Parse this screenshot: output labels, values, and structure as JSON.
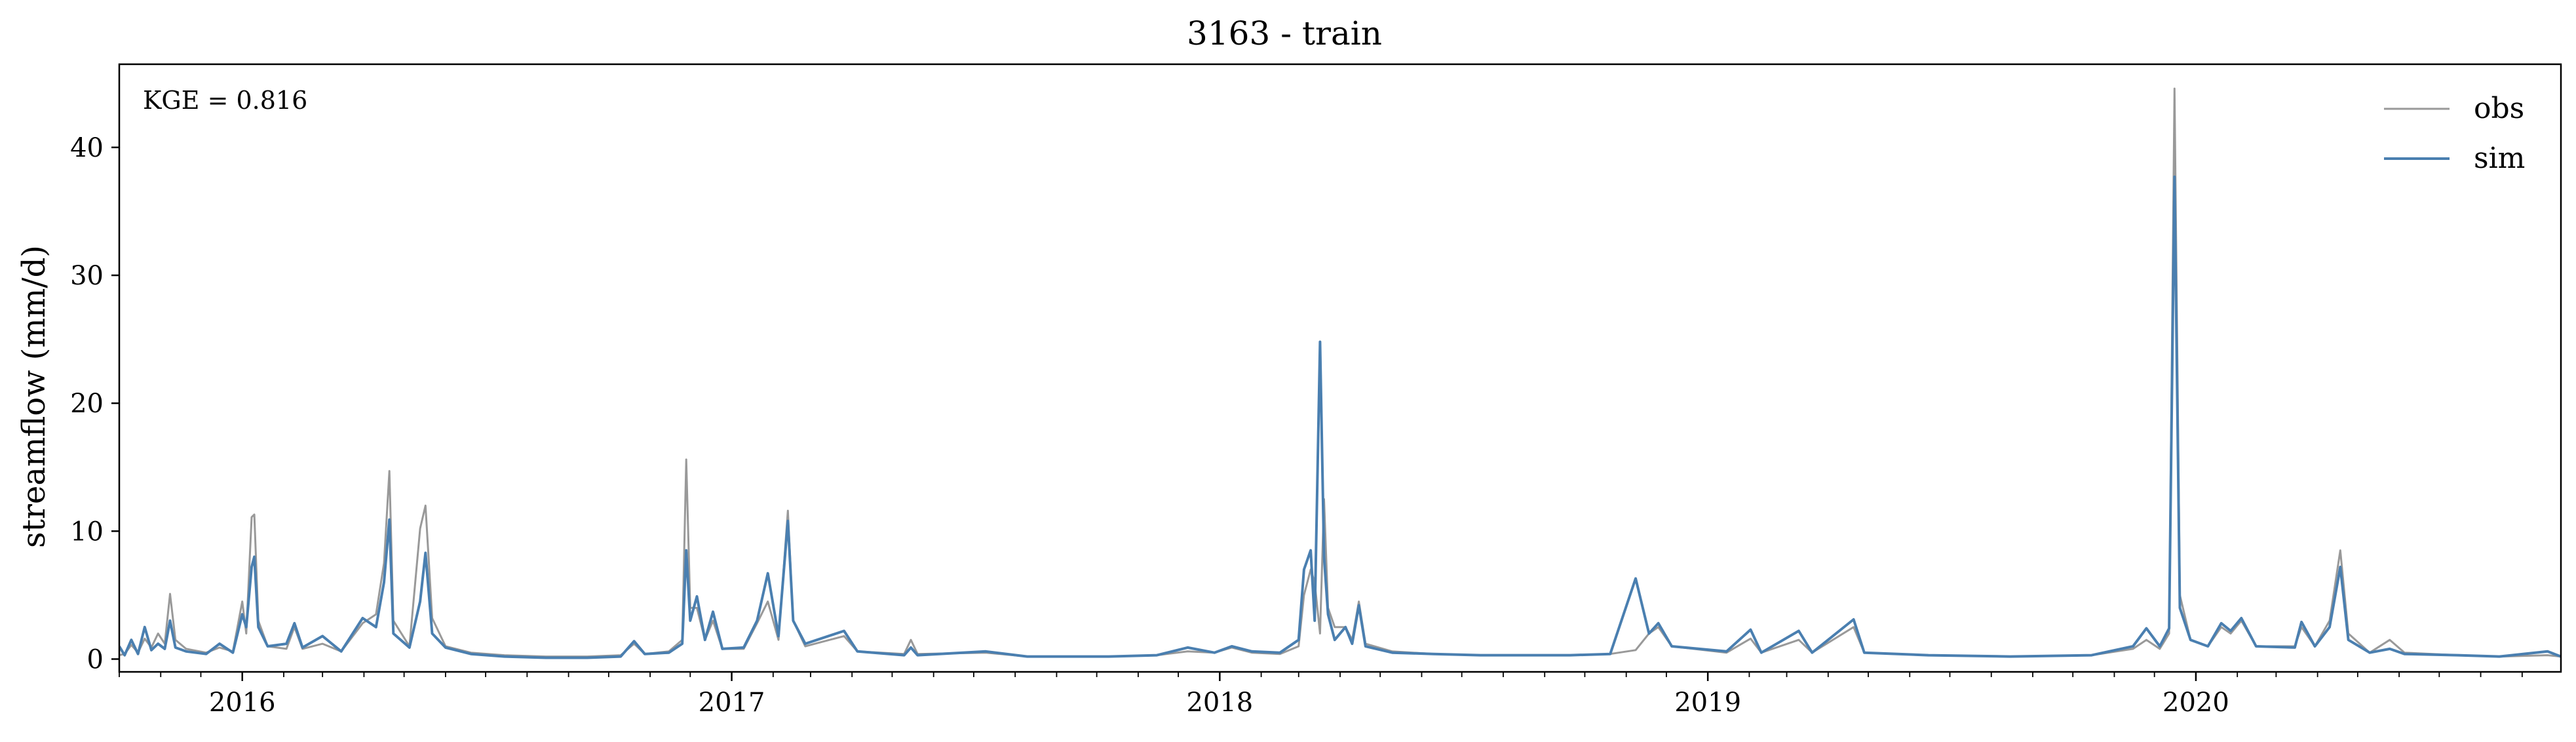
{
  "chart_data": {
    "type": "line",
    "title": "3163 - train",
    "xlabel": "",
    "ylabel": "streamflow (mm/d)",
    "annotation": "KGE = 0.816",
    "x_ticks": [
      "2016",
      "2017",
      "2018",
      "2019",
      "2020"
    ],
    "y_ticks": [
      "0",
      "10",
      "20",
      "30",
      "40"
    ],
    "xlim": [
      "2015-10-01",
      "2020-09-30"
    ],
    "ylim": [
      -1,
      46.5
    ],
    "grid": false,
    "legend": "top-right",
    "series": [
      {
        "name": "obs",
        "color": "#999999",
        "points": [
          [
            "2015-10-01",
            0.3
          ],
          [
            "2015-10-05",
            0.4
          ],
          [
            "2015-10-10",
            1.1
          ],
          [
            "2015-10-15",
            0.5
          ],
          [
            "2015-10-20",
            1.6
          ],
          [
            "2015-10-25",
            0.9
          ],
          [
            "2015-10-30",
            2.0
          ],
          [
            "2015-11-04",
            1.2
          ],
          [
            "2015-11-08",
            5.1
          ],
          [
            "2015-11-12",
            1.5
          ],
          [
            "2015-11-20",
            0.8
          ],
          [
            "2015-12-05",
            0.5
          ],
          [
            "2015-12-15",
            0.9
          ],
          [
            "2015-12-25",
            0.6
          ],
          [
            "2016-01-01",
            4.5
          ],
          [
            "2016-01-04",
            2.0
          ],
          [
            "2016-01-08",
            11.1
          ],
          [
            "2016-01-10",
            11.3
          ],
          [
            "2016-01-13",
            3.0
          ],
          [
            "2016-01-20",
            1.0
          ],
          [
            "2016-02-03",
            0.8
          ],
          [
            "2016-02-09",
            2.5
          ],
          [
            "2016-02-15",
            0.8
          ],
          [
            "2016-03-01",
            1.2
          ],
          [
            "2016-03-15",
            0.6
          ],
          [
            "2016-03-31",
            2.8
          ],
          [
            "2016-04-10",
            3.5
          ],
          [
            "2016-04-16",
            7.5
          ],
          [
            "2016-04-20",
            14.7
          ],
          [
            "2016-04-23",
            3.0
          ],
          [
            "2016-05-05",
            1.0
          ],
          [
            "2016-05-13",
            10.2
          ],
          [
            "2016-05-17",
            12.0
          ],
          [
            "2016-05-22",
            3.2
          ],
          [
            "2016-06-01",
            1.0
          ],
          [
            "2016-06-20",
            0.5
          ],
          [
            "2016-07-15",
            0.3
          ],
          [
            "2016-08-15",
            0.2
          ],
          [
            "2016-09-15",
            0.2
          ],
          [
            "2016-10-10",
            0.3
          ],
          [
            "2016-10-20",
            1.2
          ],
          [
            "2016-10-28",
            0.4
          ],
          [
            "2016-11-15",
            0.6
          ],
          [
            "2016-11-25",
            1.5
          ],
          [
            "2016-11-28",
            15.6
          ],
          [
            "2016-12-01",
            4.0
          ],
          [
            "2016-12-06",
            4.0
          ],
          [
            "2016-12-12",
            1.5
          ],
          [
            "2016-12-18",
            3.0
          ],
          [
            "2016-12-25",
            0.8
          ],
          [
            "2017-01-10",
            0.8
          ],
          [
            "2017-01-20",
            2.8
          ],
          [
            "2017-01-28",
            4.5
          ],
          [
            "2017-02-05",
            1.5
          ],
          [
            "2017-02-12",
            11.6
          ],
          [
            "2017-02-16",
            3.0
          ],
          [
            "2017-02-25",
            1.0
          ],
          [
            "2017-03-26",
            1.8
          ],
          [
            "2017-04-05",
            0.6
          ],
          [
            "2017-05-10",
            0.4
          ],
          [
            "2017-05-15",
            1.5
          ],
          [
            "2017-05-20",
            0.4
          ],
          [
            "2017-07-10",
            0.5
          ],
          [
            "2017-08-10",
            0.2
          ],
          [
            "2017-09-15",
            0.2
          ],
          [
            "2017-10-10",
            0.2
          ],
          [
            "2017-11-15",
            0.3
          ],
          [
            "2017-12-08",
            0.6
          ],
          [
            "2017-12-28",
            0.5
          ],
          [
            "2018-01-10",
            0.9
          ],
          [
            "2018-01-25",
            0.5
          ],
          [
            "2018-02-15",
            0.4
          ],
          [
            "2018-03-01",
            1.0
          ],
          [
            "2018-03-05",
            5.0
          ],
          [
            "2018-03-10",
            7.0
          ],
          [
            "2018-03-13",
            6.0
          ],
          [
            "2018-03-17",
            2.0
          ],
          [
            "2018-03-20",
            12.5
          ],
          [
            "2018-03-23",
            4.0
          ],
          [
            "2018-03-28",
            2.5
          ],
          [
            "2018-04-05",
            2.5
          ],
          [
            "2018-04-10",
            1.5
          ],
          [
            "2018-04-15",
            4.5
          ],
          [
            "2018-04-20",
            1.2
          ],
          [
            "2018-05-10",
            0.6
          ],
          [
            "2018-06-10",
            0.4
          ],
          [
            "2018-07-15",
            0.3
          ],
          [
            "2018-08-20",
            0.3
          ],
          [
            "2018-09-20",
            0.3
          ],
          [
            "2018-10-20",
            0.4
          ],
          [
            "2018-11-08",
            0.7
          ],
          [
            "2018-11-18",
            2.0
          ],
          [
            "2018-11-25",
            2.5
          ],
          [
            "2018-12-05",
            1.0
          ],
          [
            "2019-01-15",
            0.5
          ],
          [
            "2019-02-02",
            1.6
          ],
          [
            "2019-02-10",
            0.5
          ],
          [
            "2019-03-10",
            1.5
          ],
          [
            "2019-03-20",
            0.5
          ],
          [
            "2019-04-20",
            2.5
          ],
          [
            "2019-04-28",
            0.5
          ],
          [
            "2019-06-15",
            0.3
          ],
          [
            "2019-08-15",
            0.2
          ],
          [
            "2019-10-15",
            0.3
          ],
          [
            "2019-11-15",
            0.8
          ],
          [
            "2019-11-25",
            1.5
          ],
          [
            "2019-12-05",
            0.8
          ],
          [
            "2019-12-12",
            2.0
          ],
          [
            "2019-12-16",
            44.6
          ],
          [
            "2019-12-20",
            5.0
          ],
          [
            "2019-12-28",
            1.5
          ],
          [
            "2020-01-10",
            1.0
          ],
          [
            "2020-01-20",
            2.5
          ],
          [
            "2020-01-27",
            2.0
          ],
          [
            "2020-02-04",
            3.0
          ],
          [
            "2020-02-15",
            1.0
          ],
          [
            "2020-03-15",
            1.0
          ],
          [
            "2020-03-20",
            2.5
          ],
          [
            "2020-03-30",
            1.0
          ],
          [
            "2020-04-10",
            3.0
          ],
          [
            "2020-04-18",
            8.5
          ],
          [
            "2020-04-24",
            2.0
          ],
          [
            "2020-05-10",
            0.5
          ],
          [
            "2020-05-25",
            1.5
          ],
          [
            "2020-06-05",
            0.5
          ],
          [
            "2020-07-15",
            0.3
          ],
          [
            "2020-08-15",
            0.2
          ],
          [
            "2020-09-20",
            0.3
          ],
          [
            "2020-09-30",
            0.2
          ]
        ]
      },
      {
        "name": "sim",
        "color": "#4a7fb0",
        "points": [
          [
            "2015-10-01",
            1.0
          ],
          [
            "2015-10-05",
            0.3
          ],
          [
            "2015-10-10",
            1.5
          ],
          [
            "2015-10-15",
            0.4
          ],
          [
            "2015-10-20",
            2.5
          ],
          [
            "2015-10-25",
            0.7
          ],
          [
            "2015-10-30",
            1.2
          ],
          [
            "2015-11-04",
            0.8
          ],
          [
            "2015-11-08",
            3.0
          ],
          [
            "2015-11-12",
            0.9
          ],
          [
            "2015-11-20",
            0.6
          ],
          [
            "2015-12-05",
            0.4
          ],
          [
            "2015-12-15",
            1.2
          ],
          [
            "2015-12-25",
            0.5
          ],
          [
            "2016-01-01",
            3.5
          ],
          [
            "2016-01-04",
            2.5
          ],
          [
            "2016-01-08",
            7.2
          ],
          [
            "2016-01-10",
            8.0
          ],
          [
            "2016-01-13",
            2.5
          ],
          [
            "2016-01-20",
            1.0
          ],
          [
            "2016-02-03",
            1.2
          ],
          [
            "2016-02-09",
            2.8
          ],
          [
            "2016-02-15",
            0.9
          ],
          [
            "2016-03-01",
            1.8
          ],
          [
            "2016-03-15",
            0.6
          ],
          [
            "2016-03-31",
            3.2
          ],
          [
            "2016-04-10",
            2.5
          ],
          [
            "2016-04-16",
            6.0
          ],
          [
            "2016-04-20",
            10.9
          ],
          [
            "2016-04-23",
            2.0
          ],
          [
            "2016-05-05",
            0.9
          ],
          [
            "2016-05-13",
            4.5
          ],
          [
            "2016-05-17",
            8.3
          ],
          [
            "2016-05-22",
            2.0
          ],
          [
            "2016-06-01",
            0.9
          ],
          [
            "2016-06-20",
            0.4
          ],
          [
            "2016-07-15",
            0.2
          ],
          [
            "2016-08-15",
            0.1
          ],
          [
            "2016-09-15",
            0.1
          ],
          [
            "2016-10-10",
            0.2
          ],
          [
            "2016-10-20",
            1.4
          ],
          [
            "2016-10-28",
            0.4
          ],
          [
            "2016-11-15",
            0.5
          ],
          [
            "2016-11-25",
            1.2
          ],
          [
            "2016-11-28",
            8.5
          ],
          [
            "2016-12-01",
            3.0
          ],
          [
            "2016-12-06",
            4.9
          ],
          [
            "2016-12-12",
            1.5
          ],
          [
            "2016-12-18",
            3.7
          ],
          [
            "2016-12-25",
            0.8
          ],
          [
            "2017-01-10",
            0.9
          ],
          [
            "2017-01-20",
            3.0
          ],
          [
            "2017-01-28",
            6.7
          ],
          [
            "2017-02-05",
            1.8
          ],
          [
            "2017-02-12",
            10.8
          ],
          [
            "2017-02-16",
            3.0
          ],
          [
            "2017-02-25",
            1.2
          ],
          [
            "2017-03-26",
            2.2
          ],
          [
            "2017-04-05",
            0.6
          ],
          [
            "2017-05-10",
            0.3
          ],
          [
            "2017-05-15",
            0.9
          ],
          [
            "2017-05-20",
            0.3
          ],
          [
            "2017-07-10",
            0.6
          ],
          [
            "2017-08-10",
            0.2
          ],
          [
            "2017-09-15",
            0.2
          ],
          [
            "2017-10-10",
            0.2
          ],
          [
            "2017-11-15",
            0.3
          ],
          [
            "2017-12-08",
            0.9
          ],
          [
            "2017-12-28",
            0.5
          ],
          [
            "2018-01-10",
            1.0
          ],
          [
            "2018-01-25",
            0.6
          ],
          [
            "2018-02-15",
            0.5
          ],
          [
            "2018-03-01",
            1.5
          ],
          [
            "2018-03-05",
            7.0
          ],
          [
            "2018-03-10",
            8.5
          ],
          [
            "2018-03-13",
            3.0
          ],
          [
            "2018-03-17",
            24.8
          ],
          [
            "2018-03-20",
            8.0
          ],
          [
            "2018-03-23",
            3.5
          ],
          [
            "2018-03-28",
            1.5
          ],
          [
            "2018-04-05",
            2.5
          ],
          [
            "2018-04-10",
            1.2
          ],
          [
            "2018-04-15",
            4.2
          ],
          [
            "2018-04-20",
            1.0
          ],
          [
            "2018-05-10",
            0.5
          ],
          [
            "2018-06-10",
            0.4
          ],
          [
            "2018-07-15",
            0.3
          ],
          [
            "2018-08-20",
            0.3
          ],
          [
            "2018-09-20",
            0.3
          ],
          [
            "2018-10-20",
            0.4
          ],
          [
            "2018-11-08",
            6.3
          ],
          [
            "2018-11-18",
            2.0
          ],
          [
            "2018-11-25",
            2.8
          ],
          [
            "2018-12-05",
            1.0
          ],
          [
            "2019-01-15",
            0.6
          ],
          [
            "2019-02-02",
            2.3
          ],
          [
            "2019-02-10",
            0.5
          ],
          [
            "2019-03-10",
            2.2
          ],
          [
            "2019-03-20",
            0.5
          ],
          [
            "2019-04-20",
            3.1
          ],
          [
            "2019-04-28",
            0.5
          ],
          [
            "2019-06-15",
            0.3
          ],
          [
            "2019-08-15",
            0.2
          ],
          [
            "2019-10-15",
            0.3
          ],
          [
            "2019-11-15",
            1.0
          ],
          [
            "2019-11-25",
            2.4
          ],
          [
            "2019-12-05",
            1.0
          ],
          [
            "2019-12-12",
            2.4
          ],
          [
            "2019-12-16",
            37.7
          ],
          [
            "2019-12-20",
            4.0
          ],
          [
            "2019-12-28",
            1.5
          ],
          [
            "2020-01-10",
            1.0
          ],
          [
            "2020-01-20",
            2.8
          ],
          [
            "2020-01-27",
            2.2
          ],
          [
            "2020-02-04",
            3.2
          ],
          [
            "2020-02-15",
            1.0
          ],
          [
            "2020-03-15",
            0.9
          ],
          [
            "2020-03-20",
            2.9
          ],
          [
            "2020-03-30",
            1.0
          ],
          [
            "2020-04-10",
            2.5
          ],
          [
            "2020-04-18",
            7.2
          ],
          [
            "2020-04-24",
            1.5
          ],
          [
            "2020-05-10",
            0.5
          ],
          [
            "2020-05-25",
            0.8
          ],
          [
            "2020-06-05",
            0.4
          ],
          [
            "2020-07-15",
            0.3
          ],
          [
            "2020-08-15",
            0.2
          ],
          [
            "2020-09-20",
            0.6
          ],
          [
            "2020-09-30",
            0.2
          ]
        ]
      }
    ]
  }
}
